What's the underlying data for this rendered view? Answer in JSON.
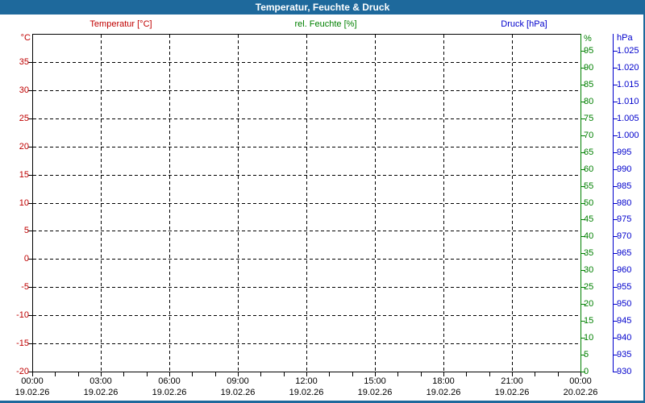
{
  "window": {
    "title": "Temperatur, Feuchte & Druck"
  },
  "colors": {
    "frame": "#1e699c",
    "temperature": "#c00000",
    "humidity": "#008000",
    "pressure": "#0000cc",
    "grid": "#000000",
    "background": "#ffffff",
    "title_text": "#ffffff",
    "x_text": "#000000"
  },
  "legend": [
    {
      "label": "Temperatur [°C]",
      "color_key": "temperature"
    },
    {
      "label": "rel. Feuchte [%]",
      "color_key": "humidity"
    },
    {
      "label": "Druck [hPa]",
      "color_key": "pressure"
    }
  ],
  "axes": {
    "temperature": {
      "unit": "°C",
      "min": -20,
      "max": 40,
      "tick_step": 5,
      "side": "left",
      "ticks": [
        {
          "label": "35",
          "value": 35
        },
        {
          "label": "30",
          "value": 30
        },
        {
          "label": "25",
          "value": 25
        },
        {
          "label": "20",
          "value": 20
        },
        {
          "label": "15",
          "value": 15
        },
        {
          "label": "10",
          "value": 10
        },
        {
          "label": "5",
          "value": 5
        },
        {
          "label": "0",
          "value": 0
        },
        {
          "label": "-5",
          "value": -5
        },
        {
          "label": "-10",
          "value": -10
        },
        {
          "label": "-15",
          "value": -15
        },
        {
          "label": "-20",
          "value": -20
        }
      ]
    },
    "humidity": {
      "unit": "%",
      "min": 0,
      "max": 100,
      "tick_step": 5,
      "side": "right",
      "ticks": [
        {
          "label": "95",
          "value": 95
        },
        {
          "label": "90",
          "value": 90
        },
        {
          "label": "85",
          "value": 85
        },
        {
          "label": "80",
          "value": 80
        },
        {
          "label": "75",
          "value": 75
        },
        {
          "label": "70",
          "value": 70
        },
        {
          "label": "65",
          "value": 65
        },
        {
          "label": "60",
          "value": 60
        },
        {
          "label": "55",
          "value": 55
        },
        {
          "label": "50",
          "value": 50
        },
        {
          "label": "45",
          "value": 45
        },
        {
          "label": "40",
          "value": 40
        },
        {
          "label": "35",
          "value": 35
        },
        {
          "label": "30",
          "value": 30
        },
        {
          "label": "25",
          "value": 25
        },
        {
          "label": "20",
          "value": 20
        },
        {
          "label": "15",
          "value": 15
        },
        {
          "label": "10",
          "value": 10
        },
        {
          "label": "5",
          "value": 5
        },
        {
          "label": "0",
          "value": 0
        }
      ]
    },
    "pressure": {
      "unit": "hPa",
      "min": 930,
      "max": 1030,
      "tick_step": 5,
      "side": "right-outer",
      "ticks": [
        {
          "label": "1.025",
          "value": 1025
        },
        {
          "label": "1.020",
          "value": 1020
        },
        {
          "label": "1.015",
          "value": 1015
        },
        {
          "label": "1.010",
          "value": 1010
        },
        {
          "label": "1.005",
          "value": 1005
        },
        {
          "label": "1.000",
          "value": 1000
        },
        {
          "label": "995",
          "value": 995
        },
        {
          "label": "990",
          "value": 990
        },
        {
          "label": "985",
          "value": 985
        },
        {
          "label": "980",
          "value": 980
        },
        {
          "label": "975",
          "value": 975
        },
        {
          "label": "970",
          "value": 970
        },
        {
          "label": "965",
          "value": 965
        },
        {
          "label": "960",
          "value": 960
        },
        {
          "label": "955",
          "value": 955
        },
        {
          "label": "950",
          "value": 950
        },
        {
          "label": "945",
          "value": 945
        },
        {
          "label": "940",
          "value": 940
        },
        {
          "label": "935",
          "value": 935
        },
        {
          "label": "930",
          "value": 930
        }
      ]
    },
    "time": {
      "range_hours": 24,
      "major_step_hours": 3,
      "minor_step_hours": 1,
      "majors": [
        {
          "time": "00:00",
          "date": "19.02.26",
          "hour": 0
        },
        {
          "time": "03:00",
          "date": "19.02.26",
          "hour": 3
        },
        {
          "time": "06:00",
          "date": "19.02.26",
          "hour": 6
        },
        {
          "time": "09:00",
          "date": "19.02.26",
          "hour": 9
        },
        {
          "time": "12:00",
          "date": "19.02.26",
          "hour": 12
        },
        {
          "time": "15:00",
          "date": "19.02.26",
          "hour": 15
        },
        {
          "time": "18:00",
          "date": "19.02.26",
          "hour": 18
        },
        {
          "time": "21:00",
          "date": "19.02.26",
          "hour": 21
        },
        {
          "time": "00:00",
          "date": "20.02.26",
          "hour": 24
        }
      ]
    }
  },
  "chart_data": {
    "type": "line",
    "title": "Temperatur, Feuchte & Druck",
    "x_axis": {
      "start": "19.02.26 00:00",
      "end": "20.02.26 00:00",
      "major_tick_hours": 3,
      "minor_tick_hours": 1,
      "tick_times": [
        "00:00",
        "03:00",
        "06:00",
        "09:00",
        "12:00",
        "15:00",
        "18:00",
        "21:00",
        "00:00"
      ],
      "tick_dates": [
        "19.02.26",
        "19.02.26",
        "19.02.26",
        "19.02.26",
        "19.02.26",
        "19.02.26",
        "19.02.26",
        "19.02.26",
        "20.02.26"
      ],
      "grid": "dashed"
    },
    "y_axes": [
      {
        "name": "Temperatur",
        "unit": "°C",
        "side": "left",
        "min": -20,
        "max": 40,
        "tick_step": 5,
        "color": "#c00000"
      },
      {
        "name": "rel. Feuchte",
        "unit": "%",
        "side": "right",
        "min": 0,
        "max": 100,
        "tick_step": 5,
        "color": "#008000"
      },
      {
        "name": "Druck",
        "unit": "hPa",
        "side": "right-outer",
        "min": 930,
        "max": 1030,
        "tick_step": 5,
        "color": "#0000cc"
      }
    ],
    "series": [
      {
        "name": "Temperatur [°C]",
        "color": "#c00000",
        "points": []
      },
      {
        "name": "rel. Feuchte [%]",
        "color": "#008000",
        "points": []
      },
      {
        "name": "Druck [hPa]",
        "color": "#0000cc",
        "points": []
      }
    ],
    "note": "plot area is empty — no data points drawn"
  }
}
